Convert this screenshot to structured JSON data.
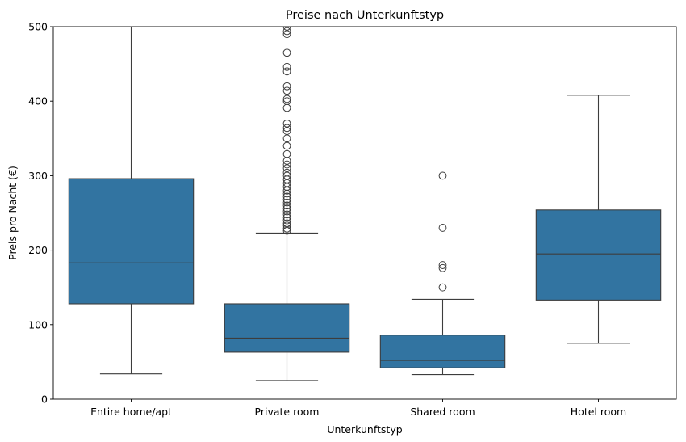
{
  "chart_data": {
    "type": "box",
    "title": "Preise nach Unterkunftstyp",
    "xlabel": "Unterkunftstyp",
    "ylabel": "Preis pro Nacht (€)",
    "ylim": [
      0,
      500
    ],
    "yticks": [
      0,
      100,
      200,
      300,
      400,
      500
    ],
    "grid": false,
    "box_color": "#3274a1",
    "line_color": "#3d3d3d",
    "categories": [
      "Entire home/apt",
      "Private room",
      "Shared room",
      "Hotel room"
    ],
    "boxes": [
      {
        "category": "Entire home/apt",
        "whisker_low": 34,
        "q1": 128,
        "median": 183,
        "q3": 296,
        "whisker_high": 540,
        "outliers": []
      },
      {
        "category": "Private room",
        "whisker_low": 25,
        "q1": 63,
        "median": 82,
        "q3": 128,
        "whisker_high": 223,
        "outliers": [
          226,
          229,
          233,
          236,
          240,
          244,
          248,
          252,
          256,
          260,
          264,
          268,
          272,
          276,
          280,
          285,
          290,
          295,
          300,
          304,
          310,
          315,
          320,
          329,
          340,
          350,
          360,
          364,
          370,
          391,
          400,
          403,
          414,
          420,
          440,
          446,
          465,
          490,
          494,
          500
        ]
      },
      {
        "category": "Shared room",
        "whisker_low": 33,
        "q1": 42,
        "median": 52,
        "q3": 86,
        "whisker_high": 134,
        "outliers": [
          150,
          176,
          180,
          230,
          300
        ]
      },
      {
        "category": "Hotel room",
        "whisker_low": 75,
        "q1": 133,
        "median": 195,
        "q3": 254,
        "whisker_high": 408,
        "outliers": []
      }
    ]
  }
}
